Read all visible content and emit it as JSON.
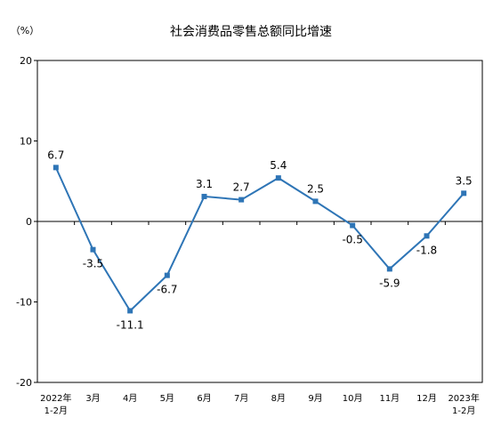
{
  "chart_data": {
    "type": "line",
    "title": "社会消费品零售总额同比增速",
    "ylabel": "（%）",
    "xlabel": "",
    "ylim": [
      -20,
      20
    ],
    "yticks": [
      20,
      10,
      0,
      -10,
      -20
    ],
    "grid": false,
    "line_color": "#2e75b6",
    "marker_color": "#2e75b6",
    "categories": [
      [
        "2022年",
        "1-2月"
      ],
      [
        "3月"
      ],
      [
        "4月"
      ],
      [
        "5月"
      ],
      [
        "6月"
      ],
      [
        "7月"
      ],
      [
        "8月"
      ],
      [
        "9月"
      ],
      [
        "10月"
      ],
      [
        "11月"
      ],
      [
        "12月"
      ],
      [
        "2023年",
        "1-2月"
      ]
    ],
    "values": [
      6.7,
      -3.5,
      -11.1,
      -6.7,
      3.1,
      2.7,
      5.4,
      2.5,
      -0.5,
      -5.9,
      -1.8,
      3.5
    ],
    "data_labels": [
      "6.7",
      "-3.5",
      "-11.1",
      "-6.7",
      "3.1",
      "2.7",
      "5.4",
      "2.5",
      "-0.5",
      "-5.9",
      "-1.8",
      "3.5"
    ],
    "label_positions": [
      "above",
      "below",
      "below",
      "below",
      "above",
      "above",
      "above",
      "above",
      "below",
      "below",
      "below",
      "above"
    ]
  }
}
